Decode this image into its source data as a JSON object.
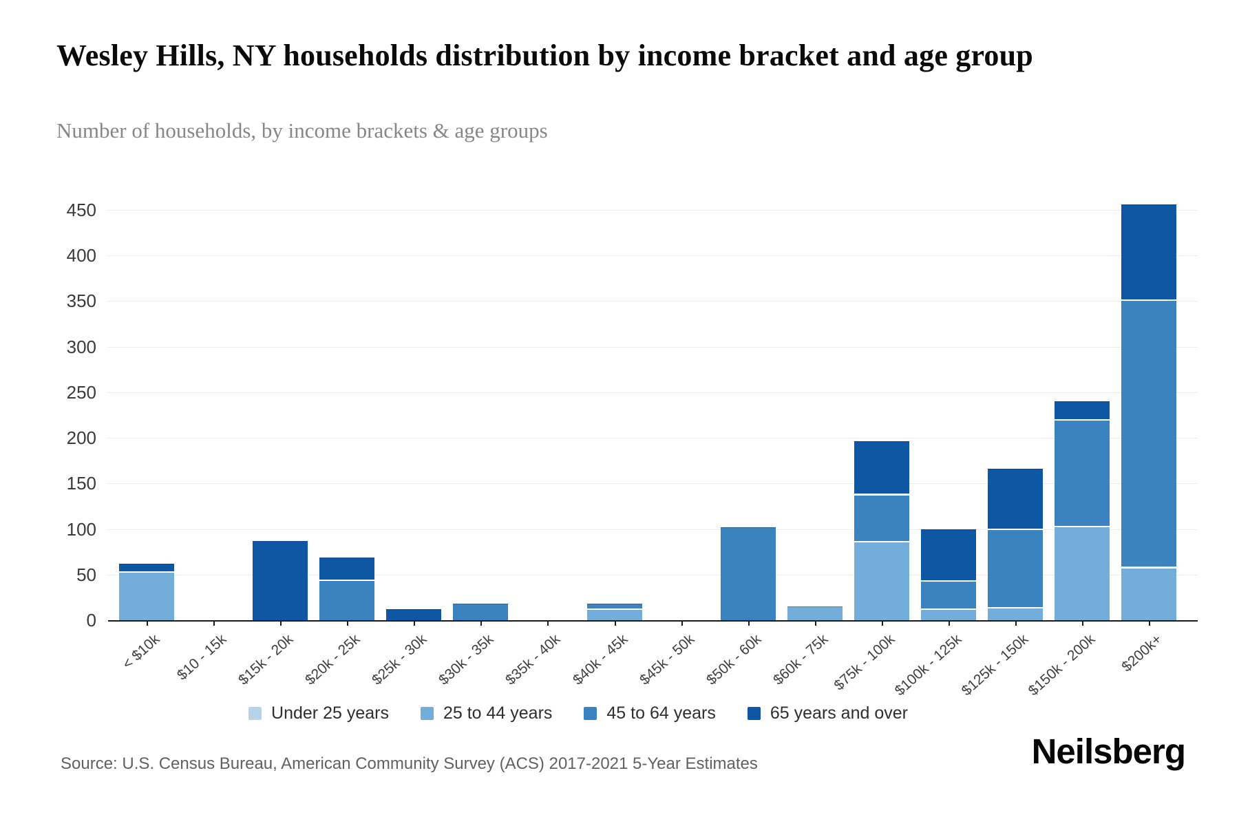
{
  "header": {
    "title": "Wesley Hills, NY households distribution by income bracket and age group",
    "subtitle": "Number of households, by income brackets & age groups"
  },
  "footer": {
    "source": "Source: U.S. Census Bureau, American Community Survey (ACS) 2017-2021 5-Year Estimates",
    "logo": "Neilsberg"
  },
  "chart_data": {
    "type": "bar",
    "stacked": true,
    "title": "Wesley Hills, NY households distribution by income bracket and age group",
    "subtitle": "Number of households, by income brackets & age groups",
    "xlabel": "",
    "ylabel": "",
    "ylim": [
      0,
      450
    ],
    "yticks": [
      0,
      50,
      100,
      150,
      200,
      250,
      300,
      350,
      400,
      450
    ],
    "grid": "horizontal",
    "legend_position": "bottom",
    "categories": [
      "< $10k",
      "$10 - 15k",
      "$15k - 20k",
      "$20k - 25k",
      "$25k - 30k",
      "$30k - 35k",
      "$35k - 40k",
      "$40k - 45k",
      "$45k - 50k",
      "$50k - 60k",
      "$60k - 75k",
      "$75k - 100k",
      "$100k - 125k",
      "$125k - 150k",
      "$150k - 200k",
      "$200k+"
    ],
    "series": [
      {
        "name": "Under 25 years",
        "color": "#b7d3e9",
        "values": [
          0,
          0,
          0,
          0,
          0,
          0,
          0,
          0,
          0,
          0,
          0,
          0,
          0,
          0,
          0,
          0
        ]
      },
      {
        "name": "25 to 44 years",
        "color": "#73aedb",
        "values": [
          52,
          0,
          0,
          0,
          0,
          0,
          0,
          11,
          0,
          0,
          15,
          85,
          11,
          13,
          102,
          57
        ]
      },
      {
        "name": "45 to 64 years",
        "color": "#3a82c0",
        "values": [
          0,
          0,
          0,
          43,
          0,
          18,
          0,
          7,
          0,
          102,
          0,
          52,
          31,
          86,
          117,
          293
        ]
      },
      {
        "name": "65 years and over",
        "color": "#0e57a5",
        "values": [
          10,
          0,
          87,
          26,
          12,
          0,
          0,
          0,
          0,
          0,
          0,
          59,
          58,
          67,
          21,
          106
        ]
      }
    ]
  }
}
